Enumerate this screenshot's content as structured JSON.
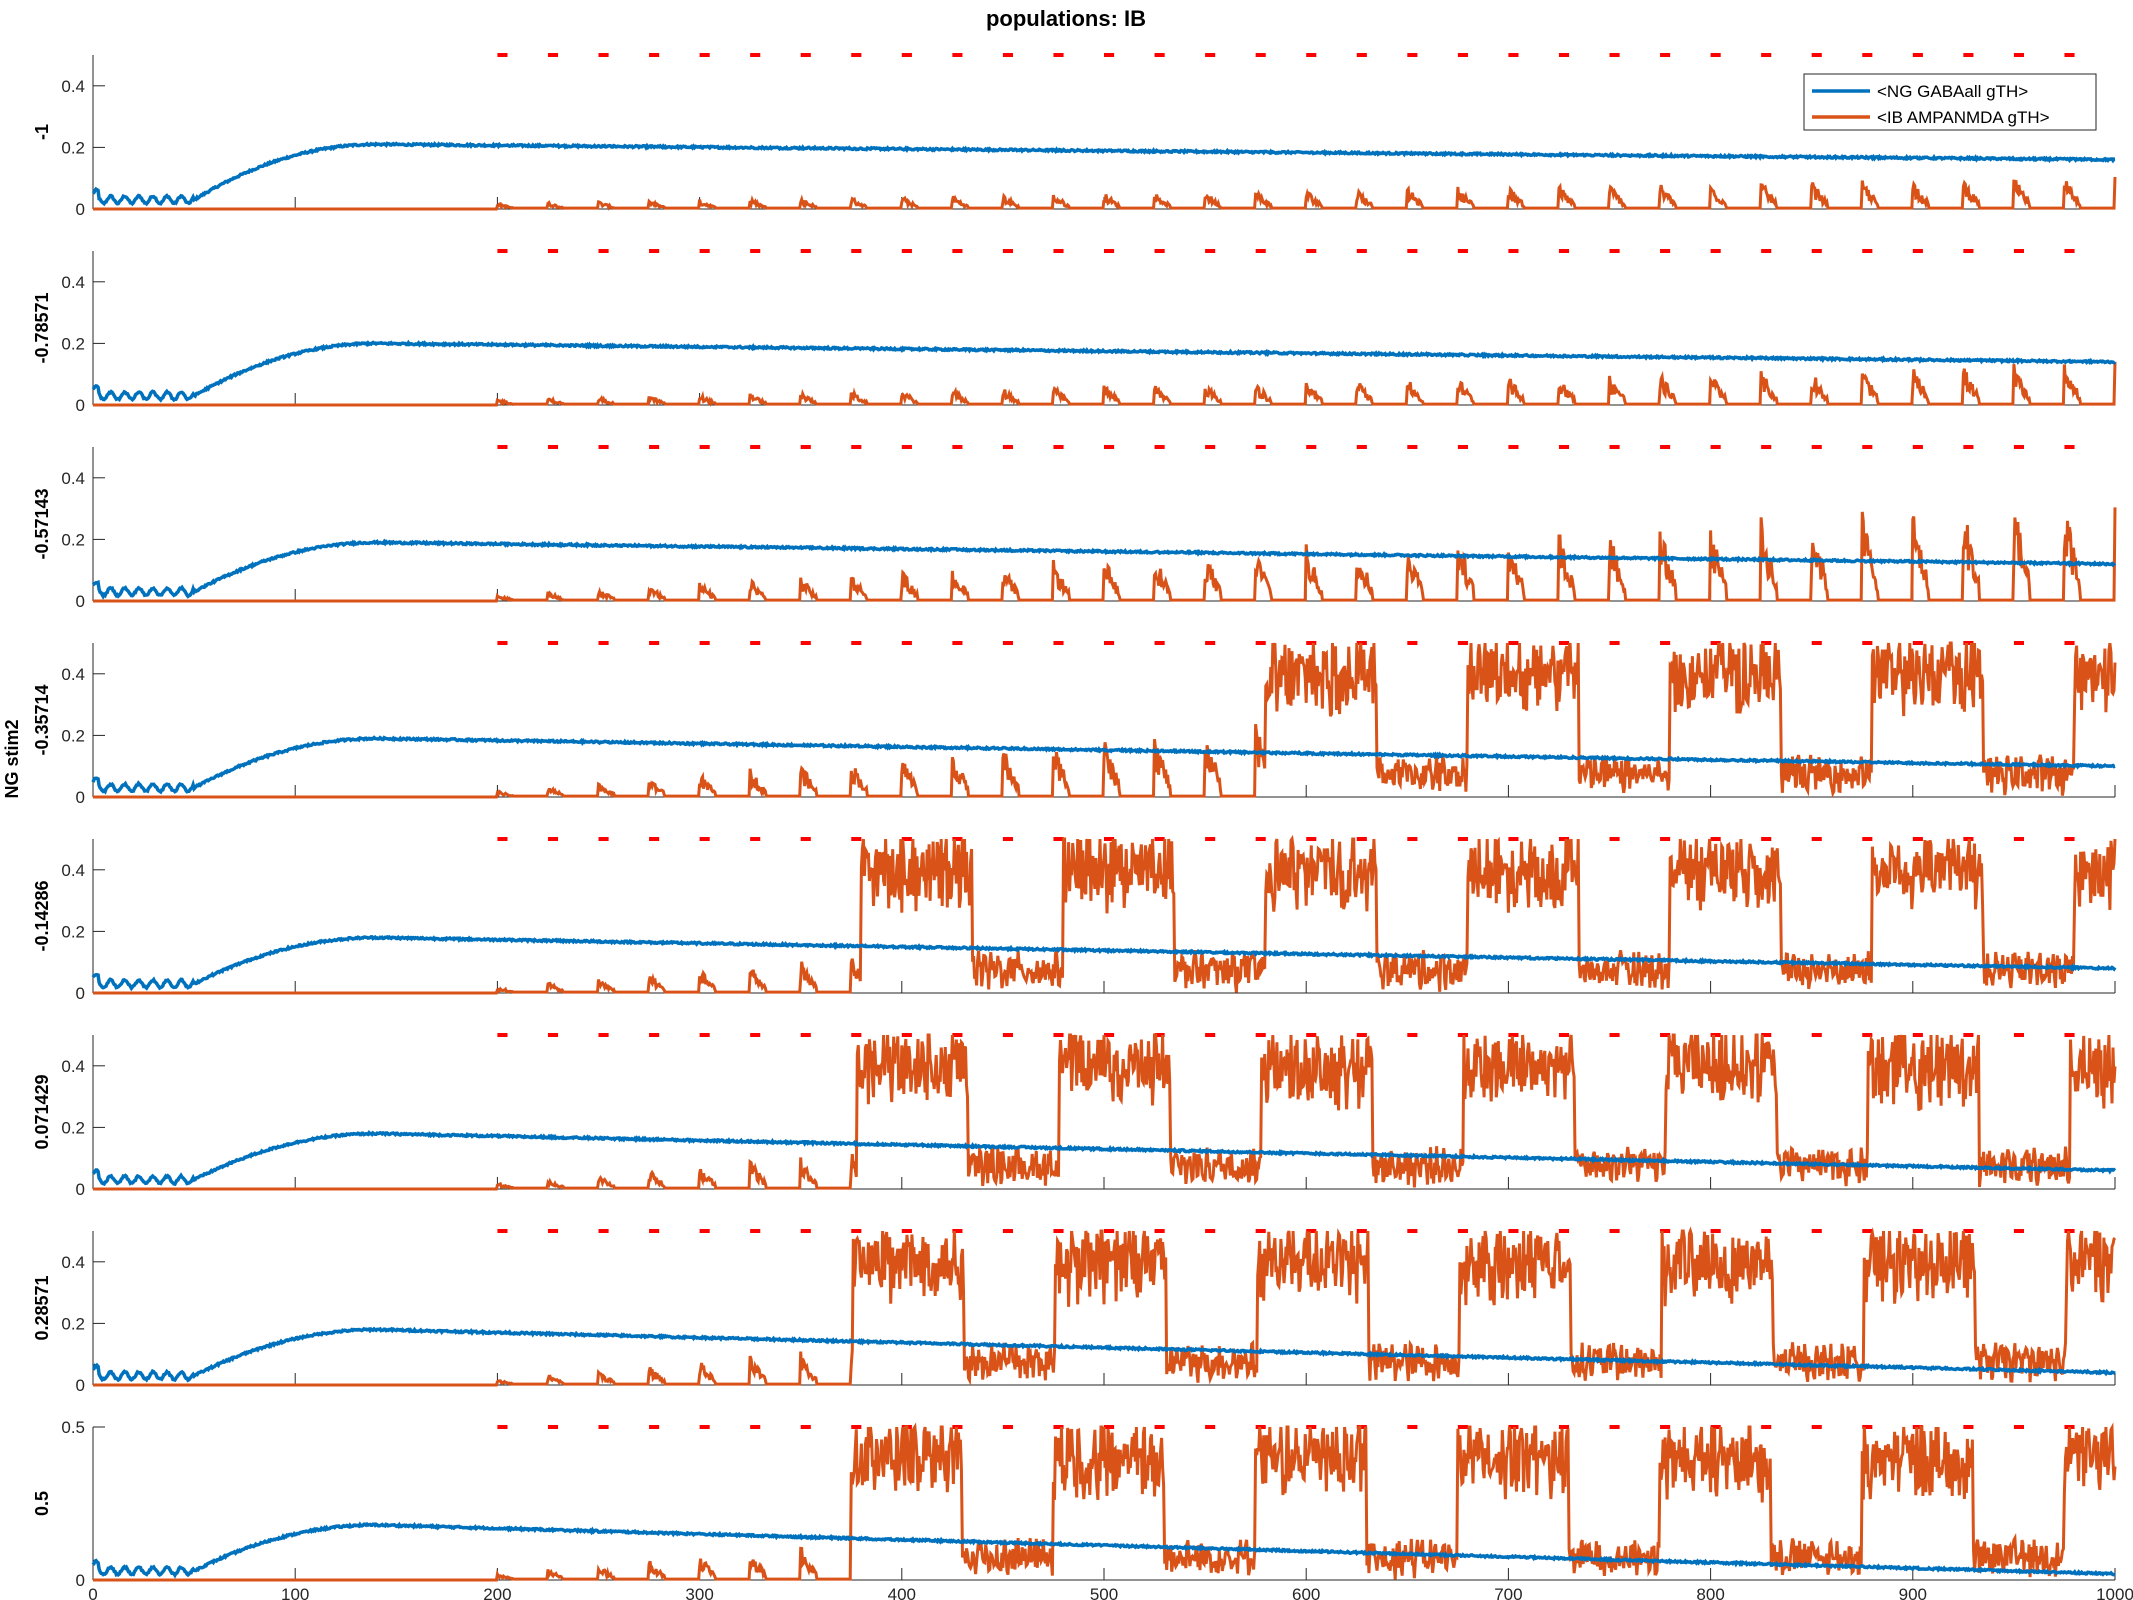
{
  "figure": {
    "title": "populations: IB",
    "shared_ylabel": "NG stim2"
  },
  "legend": [
    "<NG GABAall gTH>",
    "<IB AMPANMDA gTH>"
  ],
  "colors": {
    "ng_gabaall": "#0072BD",
    "ib_ampanmda": "#D95319",
    "stim_marker": "#FF0000",
    "axis": "#262626"
  },
  "chart_data": {
    "type": "line",
    "title": "populations: IB",
    "xlim": [
      0,
      1000
    ],
    "x_ticks": [
      "0",
      "100",
      "200",
      "300",
      "400",
      "500",
      "600",
      "700",
      "800",
      "900",
      "1000"
    ],
    "y_ticks": [
      "0",
      "0.2",
      "0.4"
    ],
    "y_ticks_last_panel": [
      "0",
      "0.5"
    ],
    "series_names": [
      "<NG GABAall gTH>",
      "<IB AMPANMDA gTH>"
    ],
    "stimulus_period": 25,
    "stimulus_onset": 200,
    "panels": [
      {
        "label": "-1",
        "ylim": [
          0,
          0.5
        ],
        "ng_plateau": 0.21,
        "ng_end": 0.16,
        "ib_runaway_start": null,
        "ib_peak_final": 0.11
      },
      {
        "label": "-0.78571",
        "ylim": [
          0,
          0.5
        ],
        "ng_plateau": 0.2,
        "ng_end": 0.14,
        "ib_runaway_start": null,
        "ib_peak_final": 0.14
      },
      {
        "label": "-0.57143",
        "ylim": [
          0,
          0.5
        ],
        "ng_plateau": 0.19,
        "ng_end": 0.12,
        "ib_runaway_start": null,
        "ib_peak_final": 0.35
      },
      {
        "label": "-0.35714",
        "ylim": [
          0,
          0.5
        ],
        "ng_plateau": 0.19,
        "ng_end": 0.1,
        "ib_runaway_start": 580,
        "ib_peak_final": 0.5
      },
      {
        "label": "-0.14286",
        "ylim": [
          0,
          0.5
        ],
        "ng_plateau": 0.18,
        "ng_end": 0.08,
        "ib_runaway_start": 380,
        "ib_peak_final": 0.5
      },
      {
        "label": "0.071429",
        "ylim": [
          0,
          0.5
        ],
        "ng_plateau": 0.18,
        "ng_end": 0.06,
        "ib_runaway_start": 378,
        "ib_peak_final": 0.5
      },
      {
        "label": "0.28571",
        "ylim": [
          0,
          0.5
        ],
        "ng_plateau": 0.18,
        "ng_end": 0.04,
        "ib_runaway_start": 376,
        "ib_peak_final": 0.5
      },
      {
        "label": "0.5",
        "ylim": [
          0,
          0.5
        ],
        "ng_plateau": 0.18,
        "ng_end": 0.02,
        "ib_runaway_start": 375,
        "ib_peak_final": 0.5
      }
    ]
  }
}
